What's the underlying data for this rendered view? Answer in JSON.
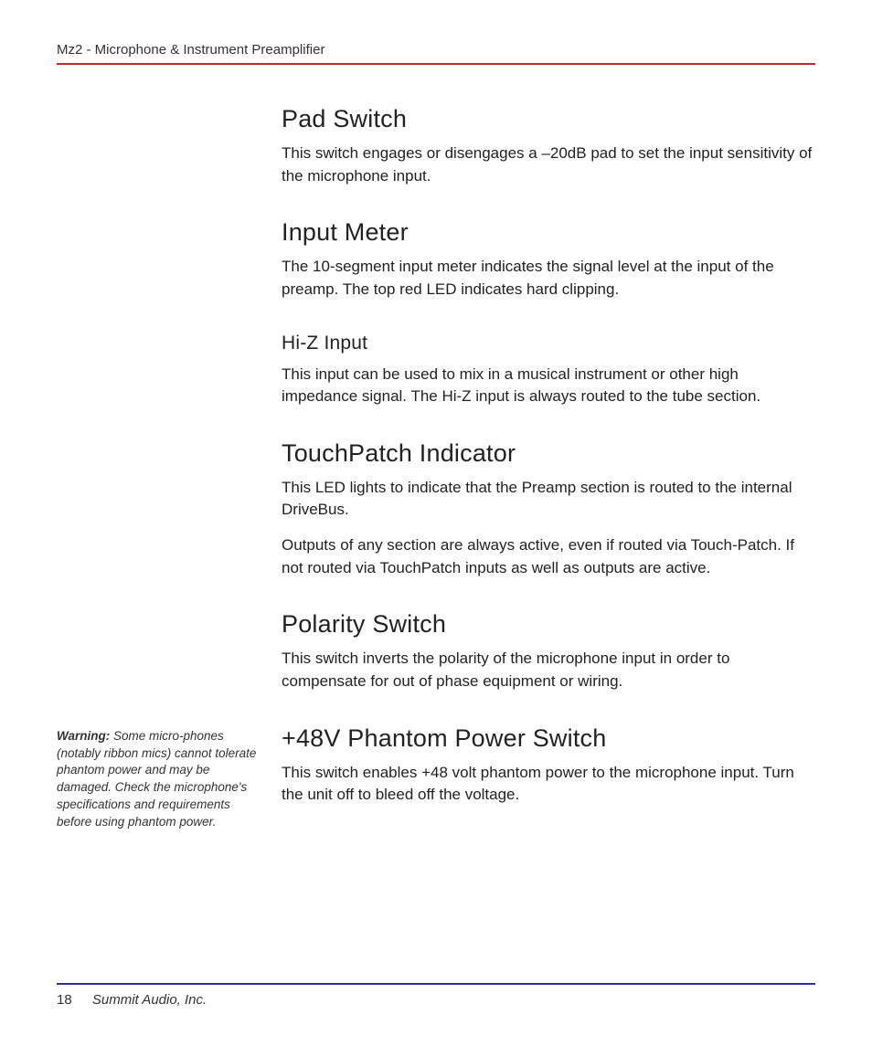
{
  "colors": {
    "accent_red": "#c1272d",
    "accent_blue": "#2e3192",
    "text": "#222222",
    "background": "#ffffff"
  },
  "typography": {
    "body_fontsize_pt": 13,
    "h1_fontsize_pt": 20,
    "h2_fontsize_pt": 16,
    "sidenote_fontsize_pt": 10,
    "header_fontsize_pt": 11
  },
  "header": {
    "text": "Mz2 - Microphone & Instrument Preamplifier"
  },
  "sections": [
    {
      "level": "h1",
      "heading": "Pad Switch",
      "paragraphs": [
        "This switch engages or disengages a –20dB pad to set the input sensitivity of the microphone input."
      ]
    },
    {
      "level": "h1",
      "heading": "Input Meter",
      "paragraphs": [
        "The 10-segment input meter indicates the signal level at the input of the preamp. The top red LED indicates hard clipping."
      ]
    },
    {
      "level": "h2",
      "heading": "Hi-Z Input",
      "paragraphs": [
        "This input can be used to mix in a musical instrument or other high impedance signal. The Hi-Z input is always routed to the tube section."
      ]
    },
    {
      "level": "h1",
      "heading": "TouchPatch Indicator",
      "paragraphs": [
        "This LED lights to indicate that the Preamp section is routed to the internal DriveBus.",
        "Outputs of any section are always active, even if routed via Touch-Patch. If not routed via TouchPatch inputs as well as outputs are active."
      ]
    },
    {
      "level": "h1",
      "heading": "Polarity Switch",
      "paragraphs": [
        "This switch inverts the polarity of the microphone input in order to compensate for out of phase equipment or wiring."
      ]
    },
    {
      "level": "h1",
      "heading": "+48V Phantom Power Switch",
      "paragraphs": [
        "This switch enables +48 volt phantom power to the microphone input. Turn the unit off to bleed off the voltage."
      ],
      "sidenote": {
        "label": "Warning:",
        "text": " Some micro-phones (notably ribbon mics) cannot tolerate phantom power and may be damaged. Check the microphone's specifications and requirements before using phantom power."
      }
    }
  ],
  "footer": {
    "page_number": "18",
    "publisher": "Summit Audio, Inc."
  }
}
